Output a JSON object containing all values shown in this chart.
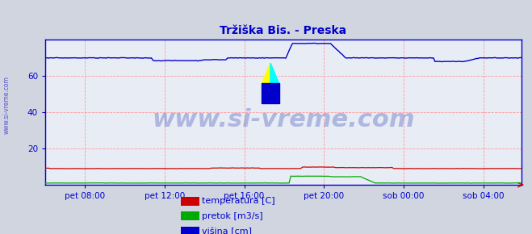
{
  "title": "Tržiška Bis. - Preska",
  "title_color": "#0000cc",
  "bg_color": "#d0d5e0",
  "plot_bg_color": "#e8ecf4",
  "grid_color": "#ff9999",
  "ylim": [
    0,
    80
  ],
  "yticks": [
    20,
    40,
    60
  ],
  "xtick_labels": [
    "pet 08:00",
    "pet 12:00",
    "pet 16:00",
    "pet 20:00",
    "sob 00:00",
    "sob 04:00"
  ],
  "n_points": 288,
  "legend_labels": [
    "temperatura [C]",
    "pretok [m3/s]",
    "višina [cm]"
  ],
  "legend_colors": [
    "#cc0000",
    "#00aa00",
    "#0000cc"
  ],
  "watermark": "www.si-vreme.com",
  "watermark_color": "#4455bb",
  "watermark_alpha": 0.35,
  "watermark_size": 22,
  "axis_color": "#0000cc",
  "tick_label_color": "#0000cc",
  "sidebar_text": "www.si-vreme.com",
  "sidebar_color": "#0000cc",
  "sidebar_alpha": 0.6,
  "figsize": [
    6.59,
    2.9
  ],
  "dpi": 100
}
